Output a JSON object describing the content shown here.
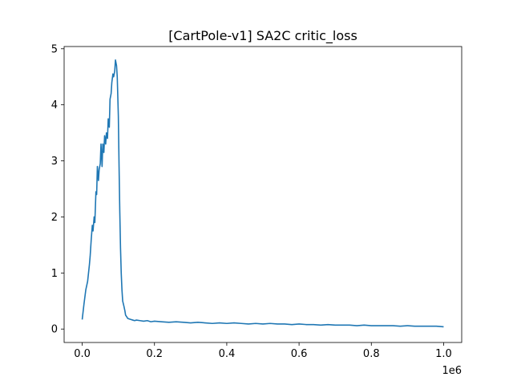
{
  "chart_data": {
    "type": "line",
    "title": "[CartPole-v1] SA2C critic_loss",
    "xlabel": "",
    "ylabel": "",
    "x_offset_label": "1e6",
    "xlim": [
      -0.05,
      1.05
    ],
    "ylim": [
      -0.24,
      5.04
    ],
    "xticks": [
      0.0,
      0.2,
      0.4,
      0.6,
      0.8,
      1.0
    ],
    "xtick_labels": [
      "0.0",
      "0.2",
      "0.4",
      "0.6",
      "0.8",
      "1.0"
    ],
    "yticks": [
      0,
      1,
      2,
      3,
      4,
      5
    ],
    "ytick_labels": [
      "0",
      "1",
      "2",
      "3",
      "4",
      "5"
    ],
    "grid": false,
    "line_color": "#1f77b4",
    "series": [
      {
        "x": [
          0.0,
          0.005,
          0.01,
          0.015,
          0.02,
          0.022,
          0.025,
          0.028,
          0.03,
          0.033,
          0.035,
          0.038,
          0.04,
          0.042,
          0.045,
          0.047,
          0.05,
          0.052,
          0.055,
          0.057,
          0.06,
          0.062,
          0.065,
          0.067,
          0.07,
          0.072,
          0.075,
          0.077,
          0.08,
          0.082,
          0.085,
          0.087,
          0.09,
          0.092,
          0.095,
          0.097,
          0.1,
          0.102,
          0.104,
          0.106,
          0.108,
          0.11,
          0.112,
          0.115,
          0.118,
          0.12,
          0.123,
          0.126,
          0.13,
          0.135,
          0.14,
          0.145,
          0.15,
          0.16,
          0.17,
          0.18,
          0.19,
          0.2,
          0.22,
          0.24,
          0.26,
          0.28,
          0.3,
          0.32,
          0.34,
          0.36,
          0.38,
          0.4,
          0.42,
          0.44,
          0.46,
          0.48,
          0.5,
          0.52,
          0.54,
          0.56,
          0.58,
          0.6,
          0.62,
          0.64,
          0.66,
          0.68,
          0.7,
          0.72,
          0.74,
          0.76,
          0.78,
          0.8,
          0.82,
          0.84,
          0.86,
          0.88,
          0.9,
          0.92,
          0.94,
          0.96,
          0.98,
          1.0
        ],
        "y": [
          0.17,
          0.45,
          0.7,
          0.85,
          1.15,
          1.3,
          1.6,
          1.85,
          1.75,
          2.0,
          1.9,
          2.45,
          2.4,
          2.9,
          2.65,
          2.85,
          2.95,
          3.3,
          2.9,
          3.3,
          3.15,
          3.45,
          3.3,
          3.5,
          3.4,
          3.75,
          3.6,
          4.1,
          4.2,
          4.4,
          4.55,
          4.5,
          4.6,
          4.8,
          4.7,
          4.5,
          3.8,
          2.9,
          2.1,
          1.45,
          1.0,
          0.7,
          0.5,
          0.42,
          0.33,
          0.25,
          0.22,
          0.19,
          0.18,
          0.17,
          0.16,
          0.15,
          0.16,
          0.15,
          0.14,
          0.15,
          0.13,
          0.14,
          0.13,
          0.12,
          0.13,
          0.12,
          0.11,
          0.12,
          0.11,
          0.1,
          0.11,
          0.1,
          0.11,
          0.1,
          0.09,
          0.1,
          0.09,
          0.1,
          0.09,
          0.09,
          0.08,
          0.09,
          0.08,
          0.08,
          0.07,
          0.08,
          0.07,
          0.07,
          0.07,
          0.06,
          0.07,
          0.06,
          0.06,
          0.06,
          0.06,
          0.05,
          0.06,
          0.05,
          0.05,
          0.05,
          0.05,
          0.04
        ]
      }
    ]
  }
}
